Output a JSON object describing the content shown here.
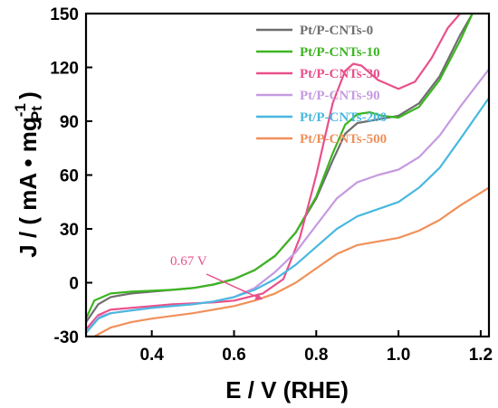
{
  "chart_data": {
    "type": "line",
    "xlabel": "E / V (RHE)",
    "ylabel": {
      "prefix": "J / ( mA • mg",
      "superscript": "-1",
      "subscript": "Pt",
      "suffix": " )"
    },
    "xlim": [
      0.24,
      1.22
    ],
    "ylim": [
      -30,
      150
    ],
    "x_ticks": [
      "0.4",
      "0.6",
      "0.8",
      "1.0",
      "1.2"
    ],
    "x_tick_values": [
      0.4,
      0.6,
      0.8,
      1.0,
      1.2
    ],
    "y_ticks": [
      "-30",
      "0",
      "30",
      "60",
      "90",
      "120",
      "150"
    ],
    "y_tick_values": [
      -30,
      0,
      30,
      60,
      90,
      120,
      150
    ],
    "legend_position": "top-right",
    "annotation": {
      "text": "0.67 V",
      "x": 0.67,
      "y": -10
    },
    "series": [
      {
        "name": "Pt/P-CNTs-0",
        "color": "#6e6e6e",
        "points": [
          [
            0.24,
            -22
          ],
          [
            0.27,
            -12
          ],
          [
            0.3,
            -8
          ],
          [
            0.35,
            -6
          ],
          [
            0.4,
            -5
          ],
          [
            0.45,
            -4
          ],
          [
            0.5,
            -3
          ],
          [
            0.55,
            -1
          ],
          [
            0.6,
            2
          ],
          [
            0.65,
            7
          ],
          [
            0.7,
            15
          ],
          [
            0.75,
            28
          ],
          [
            0.8,
            47
          ],
          [
            0.84,
            68
          ],
          [
            0.87,
            83
          ],
          [
            0.9,
            89
          ],
          [
            0.95,
            91
          ],
          [
            1.0,
            93
          ],
          [
            1.05,
            100
          ],
          [
            1.1,
            115
          ],
          [
            1.15,
            138
          ],
          [
            1.18,
            150
          ]
        ]
      },
      {
        "name": "Pt/P-CNTs-10",
        "color": "#3cb521",
        "points": [
          [
            0.24,
            -20
          ],
          [
            0.26,
            -10
          ],
          [
            0.3,
            -6
          ],
          [
            0.35,
            -5
          ],
          [
            0.4,
            -4.5
          ],
          [
            0.45,
            -4
          ],
          [
            0.5,
            -3
          ],
          [
            0.55,
            -1
          ],
          [
            0.6,
            2
          ],
          [
            0.65,
            7
          ],
          [
            0.7,
            15
          ],
          [
            0.75,
            28
          ],
          [
            0.8,
            48
          ],
          [
            0.84,
            72
          ],
          [
            0.87,
            88
          ],
          [
            0.9,
            94
          ],
          [
            0.93,
            95
          ],
          [
            0.96,
            93
          ],
          [
            1.0,
            92
          ],
          [
            1.05,
            98
          ],
          [
            1.1,
            113
          ],
          [
            1.15,
            135
          ],
          [
            1.18,
            150
          ]
        ]
      },
      {
        "name": "Pt/P-CNTs-30",
        "color": "#e8508b",
        "points": [
          [
            0.24,
            -26
          ],
          [
            0.27,
            -18
          ],
          [
            0.3,
            -15
          ],
          [
            0.35,
            -14
          ],
          [
            0.4,
            -13
          ],
          [
            0.45,
            -12
          ],
          [
            0.5,
            -11.5
          ],
          [
            0.55,
            -11
          ],
          [
            0.6,
            -10
          ],
          [
            0.67,
            -6
          ],
          [
            0.72,
            2
          ],
          [
            0.76,
            25
          ],
          [
            0.8,
            60
          ],
          [
            0.84,
            100
          ],
          [
            0.87,
            118
          ],
          [
            0.89,
            122
          ],
          [
            0.91,
            121
          ],
          [
            0.95,
            113
          ],
          [
            1.0,
            108
          ],
          [
            1.04,
            112
          ],
          [
            1.08,
            125
          ],
          [
            1.12,
            142
          ],
          [
            1.15,
            150
          ]
        ]
      },
      {
        "name": "Pt/P-CNTs-90",
        "color": "#c69ae0",
        "points": [
          [
            0.24,
            -28
          ],
          [
            0.27,
            -19
          ],
          [
            0.3,
            -17
          ],
          [
            0.35,
            -15.5
          ],
          [
            0.4,
            -14
          ],
          [
            0.45,
            -13
          ],
          [
            0.5,
            -12
          ],
          [
            0.55,
            -10.5
          ],
          [
            0.6,
            -8
          ],
          [
            0.65,
            -3
          ],
          [
            0.7,
            6
          ],
          [
            0.75,
            17
          ],
          [
            0.8,
            32
          ],
          [
            0.85,
            47
          ],
          [
            0.9,
            56
          ],
          [
            0.95,
            60
          ],
          [
            1.0,
            63
          ],
          [
            1.05,
            70
          ],
          [
            1.1,
            82
          ],
          [
            1.15,
            98
          ],
          [
            1.22,
            119
          ]
        ]
      },
      {
        "name": "Pt/P-CNTs-200",
        "color": "#48b8e0",
        "points": [
          [
            0.24,
            -28
          ],
          [
            0.27,
            -20
          ],
          [
            0.3,
            -17
          ],
          [
            0.35,
            -15.5
          ],
          [
            0.4,
            -14
          ],
          [
            0.45,
            -13
          ],
          [
            0.5,
            -12
          ],
          [
            0.55,
            -10.5
          ],
          [
            0.6,
            -8
          ],
          [
            0.65,
            -4
          ],
          [
            0.7,
            2
          ],
          [
            0.75,
            10
          ],
          [
            0.8,
            20
          ],
          [
            0.85,
            30
          ],
          [
            0.9,
            37
          ],
          [
            0.95,
            41
          ],
          [
            1.0,
            45
          ],
          [
            1.05,
            53
          ],
          [
            1.1,
            64
          ],
          [
            1.15,
            80
          ],
          [
            1.22,
            103
          ]
        ]
      },
      {
        "name": "Pt/P-CNTs-500",
        "color": "#f0905a",
        "points": [
          [
            0.26,
            -30
          ],
          [
            0.3,
            -25
          ],
          [
            0.35,
            -22
          ],
          [
            0.4,
            -20
          ],
          [
            0.45,
            -18.5
          ],
          [
            0.5,
            -17
          ],
          [
            0.55,
            -15
          ],
          [
            0.6,
            -13
          ],
          [
            0.65,
            -10
          ],
          [
            0.7,
            -6
          ],
          [
            0.75,
            0
          ],
          [
            0.8,
            8
          ],
          [
            0.85,
            16
          ],
          [
            0.9,
            21
          ],
          [
            0.95,
            23
          ],
          [
            1.0,
            25
          ],
          [
            1.05,
            29
          ],
          [
            1.1,
            35
          ],
          [
            1.15,
            43
          ],
          [
            1.22,
            53
          ]
        ]
      }
    ]
  }
}
